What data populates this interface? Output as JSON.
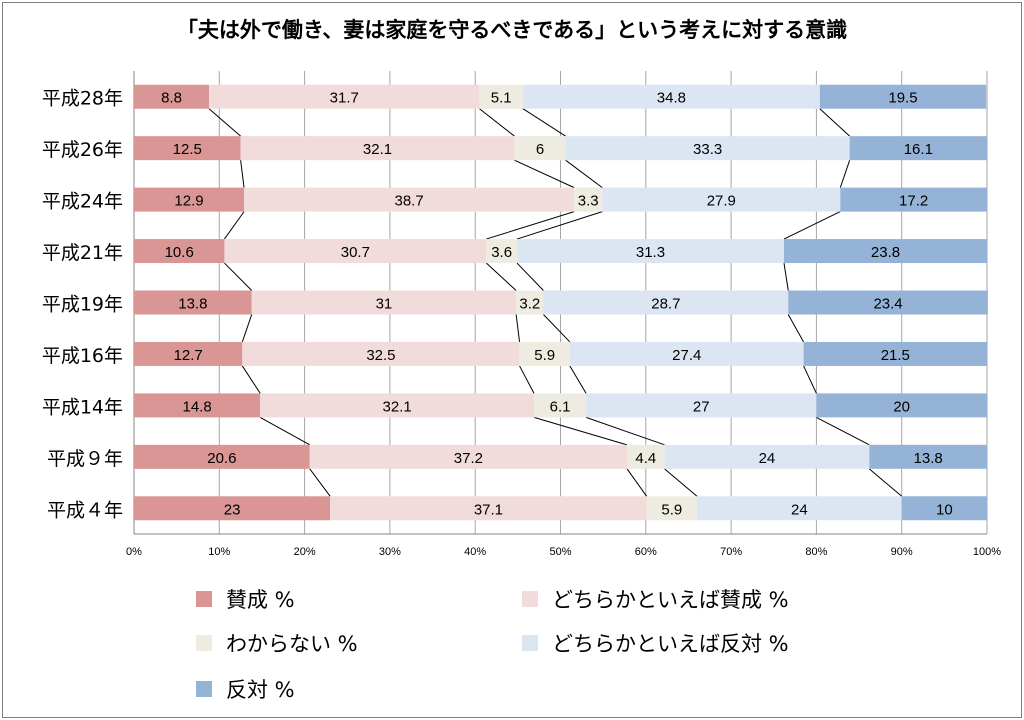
{
  "chart_data": {
    "type": "bar",
    "orientation": "horizontal",
    "stacked": "percent",
    "title": "「夫は外で働き、妻は家庭を守るべきである」という考えに対する意識",
    "categories": [
      "平成28年",
      "平成26年",
      "平成24年",
      "平成21年",
      "平成19年",
      "平成16年",
      "平成14年",
      "平成９年",
      "平成４年"
    ],
    "series": [
      {
        "name": "賛成 %",
        "color": "#d99694",
        "values": [
          8.8,
          12.5,
          12.9,
          10.6,
          13.8,
          12.7,
          14.8,
          20.6,
          23
        ]
      },
      {
        "name": "どちらかといえば賛成 %",
        "color": "#f2dcdb",
        "values": [
          31.7,
          32.1,
          38.7,
          30.7,
          31,
          32.5,
          32.1,
          37.2,
          37.1
        ]
      },
      {
        "name": "わからない %",
        "color": "#eeece1",
        "values": [
          5.1,
          6,
          3.3,
          3.6,
          3.2,
          5.9,
          6.1,
          4.4,
          5.9
        ]
      },
      {
        "name": "どちらかといえば反対 %",
        "color": "#dce6f2",
        "values": [
          34.8,
          33.3,
          27.9,
          31.3,
          28.7,
          27.4,
          27,
          24,
          24
        ]
      },
      {
        "name": "反対 %",
        "color": "#95b3d7",
        "values": [
          19.5,
          16.1,
          17.2,
          23.8,
          23.4,
          21.5,
          20,
          13.8,
          10
        ]
      }
    ],
    "xlim": [
      0,
      100
    ],
    "x_ticks": [
      "0%",
      "10%",
      "20%",
      "30%",
      "40%",
      "50%",
      "60%",
      "70%",
      "80%",
      "90%",
      "100%"
    ],
    "grid": true,
    "series_lines": true,
    "legend_position": "bottom"
  }
}
